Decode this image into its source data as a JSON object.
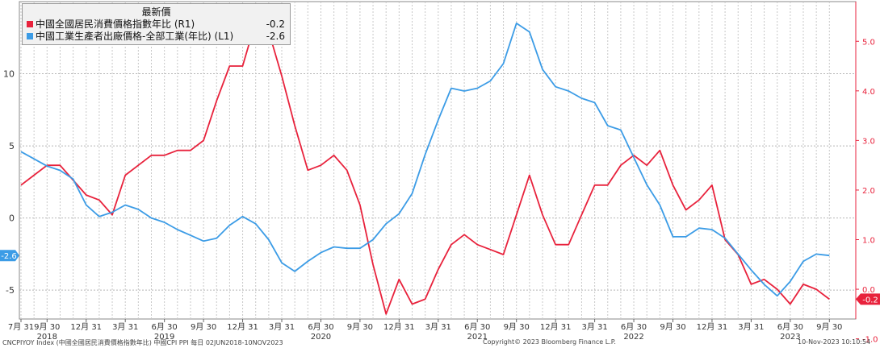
{
  "chart_data": {
    "type": "line",
    "x_start": "2018-07",
    "x_tick_labels": [
      {
        "month": "2018-07",
        "label": "7月 31"
      },
      {
        "month": "2018-09",
        "label": "9月 30"
      },
      {
        "month": "2018-12",
        "label": "12月 31"
      },
      {
        "month": "2019-03",
        "label": "3月 31"
      },
      {
        "month": "2019-06",
        "label": "6月 30"
      },
      {
        "month": "2019-09",
        "label": "9月 30"
      },
      {
        "month": "2019-12",
        "label": "12月 31"
      },
      {
        "month": "2020-03",
        "label": "3月 31"
      },
      {
        "month": "2020-06",
        "label": "6月 30"
      },
      {
        "month": "2020-09",
        "label": "9月 30"
      },
      {
        "month": "2020-12",
        "label": "12月 31"
      },
      {
        "month": "2021-03",
        "label": "3月 31"
      },
      {
        "month": "2021-06",
        "label": "6月 30"
      },
      {
        "month": "2021-09",
        "label": "9月 30"
      },
      {
        "month": "2021-12",
        "label": "12月 31"
      },
      {
        "month": "2022-03",
        "label": "3月 31"
      },
      {
        "month": "2022-06",
        "label": "6月 30"
      },
      {
        "month": "2022-09",
        "label": "9月 30"
      },
      {
        "month": "2022-12",
        "label": "12月 31"
      },
      {
        "month": "2023-03",
        "label": "3月 31"
      },
      {
        "month": "2023-06",
        "label": "6月 30"
      },
      {
        "month": "2023-09",
        "label": "9月 30"
      }
    ],
    "x_year_labels": [
      {
        "month": "2018-09",
        "label": "2018"
      },
      {
        "month": "2019-06",
        "label": "2019"
      },
      {
        "month": "2020-06",
        "label": "2020"
      },
      {
        "month": "2021-06",
        "label": "2021"
      },
      {
        "month": "2022-06",
        "label": "2022"
      },
      {
        "month": "2023-06",
        "label": "2023"
      }
    ],
    "left_axis": {
      "min": -7,
      "max": 15,
      "ticks": [
        -5,
        0,
        5,
        10
      ]
    },
    "right_axis": {
      "min": -0.6,
      "max": 5.8,
      "ticks": [
        -1.0,
        0.0,
        1.0,
        2.0,
        3.0,
        4.0,
        5.0
      ],
      "tick_labels": [
        "-1.0",
        "0.0",
        "1.0",
        "2.0",
        "3.0",
        "4.0",
        "5.0"
      ]
    },
    "grid": true,
    "legend_position": "top-left",
    "legend_title": "最新價",
    "series": [
      {
        "name": "中國全國居民消費價格指數年比 (R1)",
        "axis": "right",
        "color": "#e8223c",
        "last_value_label": "-0.2",
        "values": [
          2.1,
          2.3,
          2.5,
          2.5,
          2.2,
          1.9,
          1.8,
          1.5,
          2.3,
          2.5,
          2.7,
          2.7,
          2.8,
          2.8,
          3.0,
          3.8,
          4.5,
          4.5,
          5.4,
          5.2,
          4.3,
          3.3,
          2.4,
          2.5,
          2.7,
          2.4,
          1.7,
          0.5,
          -0.5,
          0.2,
          -0.3,
          -0.2,
          0.4,
          0.9,
          1.1,
          0.9,
          0.8,
          0.7,
          1.5,
          2.3,
          1.5,
          0.9,
          0.9,
          1.5,
          2.1,
          2.1,
          2.5,
          2.7,
          2.5,
          2.8,
          2.1,
          1.6,
          1.8,
          2.1,
          1.0,
          0.7,
          0.1,
          0.2,
          0.0,
          -0.3,
          0.1,
          0.0,
          -0.2
        ]
      },
      {
        "name": "中國工業生產者出廠價格-全部工業(年比) (L1)",
        "axis": "left",
        "color": "#3c9ce6",
        "last_value_label": "-2.6",
        "values": [
          4.6,
          4.1,
          3.6,
          3.3,
          2.7,
          0.9,
          0.1,
          0.4,
          0.9,
          0.6,
          0.0,
          -0.3,
          -0.8,
          -1.2,
          -1.6,
          -1.4,
          -0.5,
          0.1,
          -0.4,
          -1.5,
          -3.1,
          -3.7,
          -3.0,
          -2.4,
          -2.0,
          -2.1,
          -2.1,
          -1.5,
          -0.4,
          0.3,
          1.7,
          4.4,
          6.8,
          9.0,
          8.8,
          9.0,
          9.5,
          10.7,
          13.5,
          12.9,
          10.3,
          9.1,
          8.8,
          8.3,
          8.0,
          6.4,
          6.1,
          4.2,
          2.3,
          0.9,
          -1.3,
          -1.3,
          -0.7,
          -0.8,
          -1.4,
          -2.5,
          -3.6,
          -4.6,
          -5.4,
          -4.4,
          -3.0,
          -2.5,
          -2.6
        ]
      }
    ]
  },
  "footer": {
    "left": "CNCPIYOY Index (中國全國居民消費價格指數年比) 中國CPI PPI  每日 02JUN2018-10NOV2023",
    "center": "Copyright© 2023 Bloomberg Finance L.P.",
    "right": "10-Nov-2023 10:10:54"
  }
}
